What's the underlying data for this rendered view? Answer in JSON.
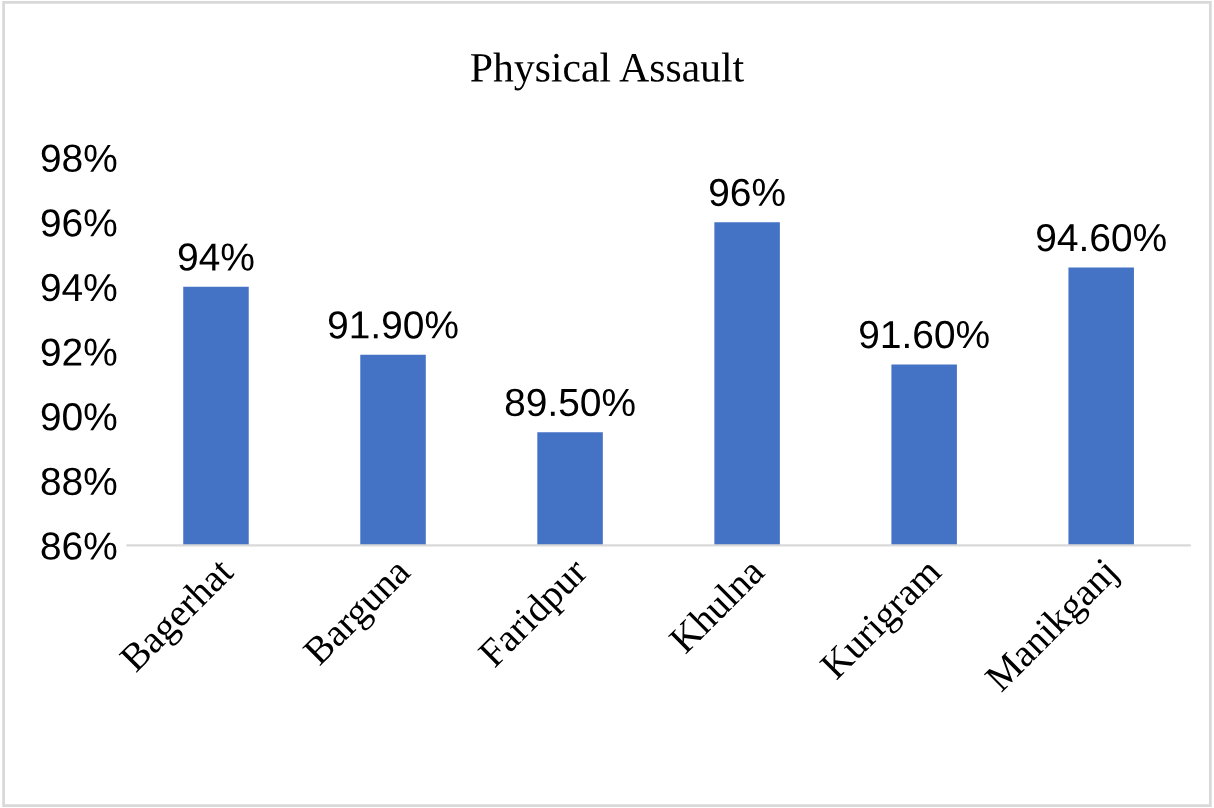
{
  "chart_data": {
    "type": "bar",
    "title": "Physical Assault",
    "categories": [
      "Bagerhat",
      "Barguna",
      "Faridpur",
      "Khulna",
      "Kurigram",
      "Manikganj"
    ],
    "values": [
      94,
      91.9,
      89.5,
      96,
      91.6,
      94.6
    ],
    "value_labels": [
      "94%",
      "91.90%",
      "89.50%",
      "96%",
      "91.60%",
      "94.60%"
    ],
    "color": "#4472c4",
    "ylim": [
      86,
      98
    ],
    "yticks": [
      {
        "value": 86,
        "label": "86%"
      },
      {
        "value": 88,
        "label": "88%"
      },
      {
        "value": 90,
        "label": "90%"
      },
      {
        "value": 92,
        "label": "92%"
      },
      {
        "value": 94,
        "label": "94%"
      },
      {
        "value": 96,
        "label": "96%"
      },
      {
        "value": 98,
        "label": "98%"
      }
    ],
    "grid": false,
    "legend": false
  }
}
